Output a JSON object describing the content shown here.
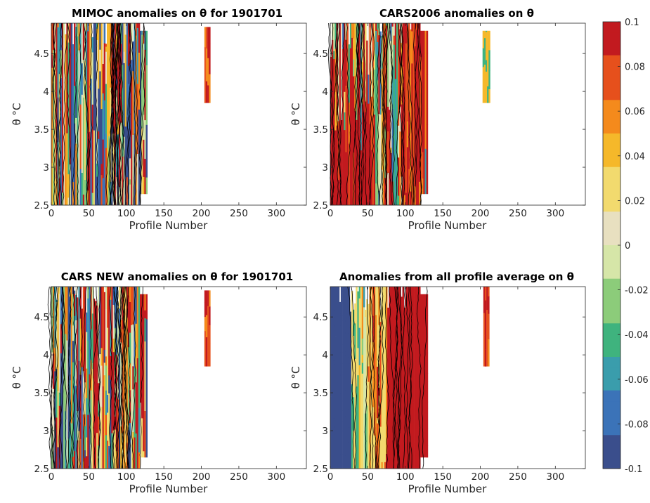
{
  "figure": {
    "colorbar": {
      "range": [
        -0.1,
        0.1
      ],
      "ticks": [
        0.1,
        0.08,
        0.06,
        0.04,
        0.02,
        0,
        -0.02,
        -0.04,
        -0.06,
        -0.08,
        -0.1
      ],
      "tick_labels": [
        "0.1",
        "0.08",
        "0.06",
        "0.04",
        "0.02",
        "0",
        "-0.02",
        "-0.04",
        "-0.06",
        "-0.08",
        "-0.1"
      ],
      "colormap": [
        "#3a4e8c",
        "#3b73b8",
        "#3a9dac",
        "#3fb37e",
        "#8ccc7a",
        "#d6e6a8",
        "#e8e0c0",
        "#f2da6e",
        "#f5b82a",
        "#f48a1c",
        "#e6501c",
        "#c21a1f"
      ]
    }
  },
  "chart_data": [
    {
      "type": "heatmap",
      "title": "MIMOC anomalies on θ  for 1901701",
      "xlabel": "Profile Number",
      "ylabel": "θ °C",
      "xlim": [
        0,
        340
      ],
      "ylim": [
        2.5,
        4.9
      ],
      "xticks": [
        0,
        50,
        100,
        150,
        200,
        250,
        300
      ],
      "yticks": [
        2.5,
        3,
        3.5,
        4,
        4.5
      ],
      "ytick_labels": [
        "2.5",
        "3",
        "3.5",
        "4",
        "4.5"
      ],
      "data_extent": {
        "profiles": [
          0,
          128
        ],
        "theta_min": 2.5
      },
      "isolated_profiles": {
        "profiles": [
          204,
          212
        ],
        "theta_range": [
          3.85,
          4.85
        ]
      },
      "character": "mixed"
    },
    {
      "type": "heatmap",
      "title": "CARS2006 anomalies on θ",
      "xlabel": "Profile Number",
      "ylabel": "θ °C",
      "xlim": [
        0,
        340
      ],
      "ylim": [
        2.5,
        4.9
      ],
      "xticks": [
        0,
        50,
        100,
        150,
        200,
        250,
        300
      ],
      "yticks": [
        2.5,
        3,
        3.5,
        4,
        4.5
      ],
      "ytick_labels": [
        "2.5",
        "3",
        "3.5",
        "4",
        "4.5"
      ],
      "data_extent": {
        "profiles": [
          0,
          130
        ],
        "theta_min": 2.5
      },
      "isolated_profiles": {
        "profiles": [
          203,
          212
        ],
        "theta_range": [
          3.85,
          4.8
        ]
      },
      "character": "warm-bottom"
    },
    {
      "type": "heatmap",
      "title": "CARS NEW anomalies on θ for 1901701",
      "xlabel": "Profile Number",
      "ylabel": "θ °C",
      "xlim": [
        0,
        340
      ],
      "ylim": [
        2.5,
        4.9
      ],
      "xticks": [
        0,
        50,
        100,
        150,
        200,
        250,
        300
      ],
      "yticks": [
        2.5,
        3,
        3.5,
        4,
        4.5
      ],
      "ytick_labels": [
        "2.5",
        "3",
        "3.5",
        "4",
        "4.5"
      ],
      "data_extent": {
        "profiles": [
          0,
          128
        ],
        "theta_min": 2.5
      },
      "isolated_profiles": {
        "profiles": [
          204,
          212
        ],
        "theta_range": [
          3.85,
          4.85
        ]
      },
      "character": "mixed"
    },
    {
      "type": "heatmap",
      "title": "Anomalies from all profile average on θ",
      "xlabel": "Profile Number",
      "ylabel": "θ °C",
      "xlim": [
        0,
        340
      ],
      "ylim": [
        2.5,
        4.9
      ],
      "xticks": [
        0,
        50,
        100,
        150,
        200,
        250,
        300
      ],
      "yticks": [
        2.5,
        3,
        3.5,
        4,
        4.5
      ],
      "ytick_labels": [
        "2.5",
        "3",
        "3.5",
        "4",
        "4.5"
      ],
      "data_extent": {
        "profiles": [
          0,
          130
        ],
        "theta_min": 2.5
      },
      "isolated_profiles": {
        "profiles": [
          204,
          212
        ],
        "theta_range": [
          3.85,
          4.9
        ]
      },
      "character": "anomaly-from-mean"
    }
  ]
}
